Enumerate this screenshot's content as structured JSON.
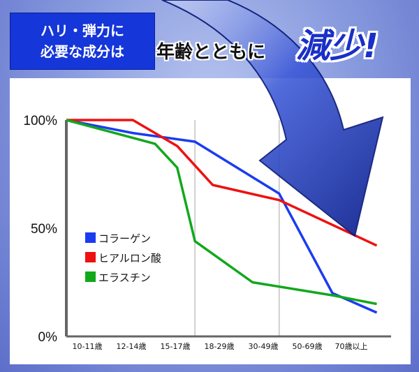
{
  "badge": {
    "line1": "ハリ・弾力に",
    "line2": "必要な成分は"
  },
  "headline": {
    "text": "年齢とともに",
    "emphasis": "減少!"
  },
  "chart_data": {
    "type": "line",
    "categories": [
      "10-11歳",
      "12-14歳",
      "15-17歳",
      "18-29歳",
      "30-49歳",
      "50-69歳",
      "70歳以上"
    ],
    "y_ticks": [
      "100%",
      "50%",
      "0%"
    ],
    "ylim": [
      0,
      100
    ],
    "grid": "vertical",
    "legend_position": "middle-left",
    "series": [
      {
        "name": "コラーゲン",
        "color": "#1a3cf0",
        "points": [
          [
            0,
            100
          ],
          [
            1.5,
            94
          ],
          [
            2.9,
            90
          ],
          [
            4.8,
            66
          ],
          [
            6,
            20
          ],
          [
            7,
            11
          ]
        ]
      },
      {
        "name": "ヒアルロン酸",
        "color": "#ee1111",
        "points": [
          [
            0,
            100
          ],
          [
            1.5,
            100
          ],
          [
            2.5,
            88
          ],
          [
            3.3,
            70
          ],
          [
            4.8,
            63
          ],
          [
            7,
            42
          ]
        ]
      },
      {
        "name": "エラスチン",
        "color": "#11a81c",
        "points": [
          [
            0,
            100
          ],
          [
            2,
            89
          ],
          [
            2.5,
            78
          ],
          [
            2.9,
            44
          ],
          [
            4.2,
            25
          ],
          [
            6,
            19
          ],
          [
            7,
            15
          ]
        ]
      }
    ]
  }
}
